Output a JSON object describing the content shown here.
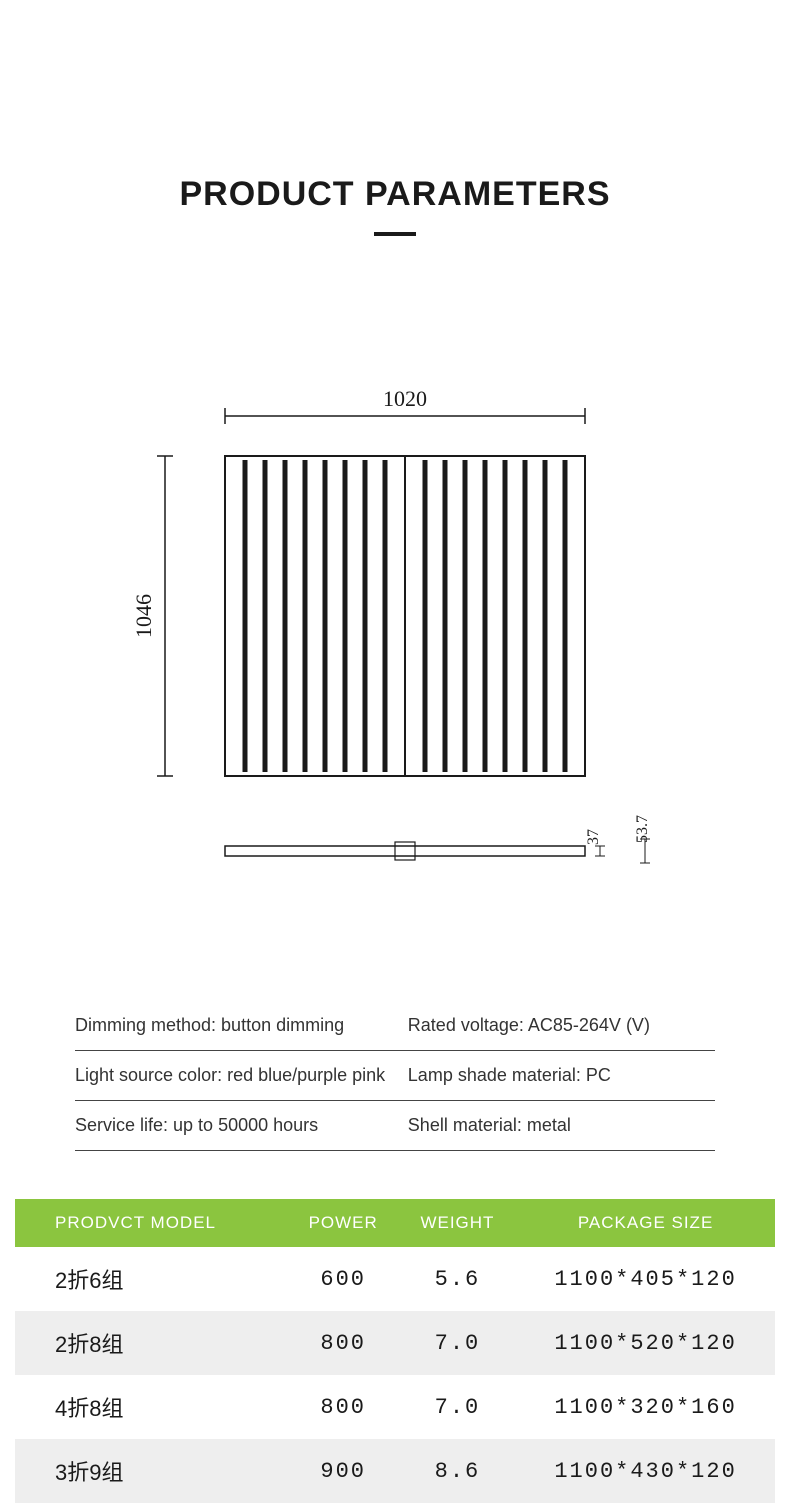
{
  "title": "PRODUCT PARAMETERS",
  "diagram": {
    "width_label": "1020",
    "height_label": "1046",
    "side_h1": "37",
    "side_h2": "53.7",
    "bar_count": 16,
    "stroke": "#1a1a1a",
    "bg": "#ffffff"
  },
  "specs": {
    "rows": [
      {
        "left": "Dimming method: button dimming",
        "right": "Rated voltage: AC85-264V (V)"
      },
      {
        "left": "Light source color: red blue/purple pink",
        "right": "Lamp shade material: PC"
      },
      {
        "left": "Service life: up to 50000 hours",
        "right": "Shell material: metal"
      }
    ]
  },
  "table": {
    "header_bg": "#8bc53f",
    "header_fg": "#ffffff",
    "alt_bg": "#eeeeee",
    "columns": [
      "PRODVCT MODEL",
      "POWER",
      "WEIGHT",
      "PACKAGE SIZE"
    ],
    "rows": [
      [
        "2折6组",
        "600",
        "5.6",
        "1100*405*120"
      ],
      [
        "2折8组",
        "800",
        "7.0",
        "1100*520*120"
      ],
      [
        "4折8组",
        "800",
        "7.0",
        "1100*320*160"
      ],
      [
        "3折9组",
        "900",
        "8.6",
        "1100*430*120"
      ]
    ]
  }
}
